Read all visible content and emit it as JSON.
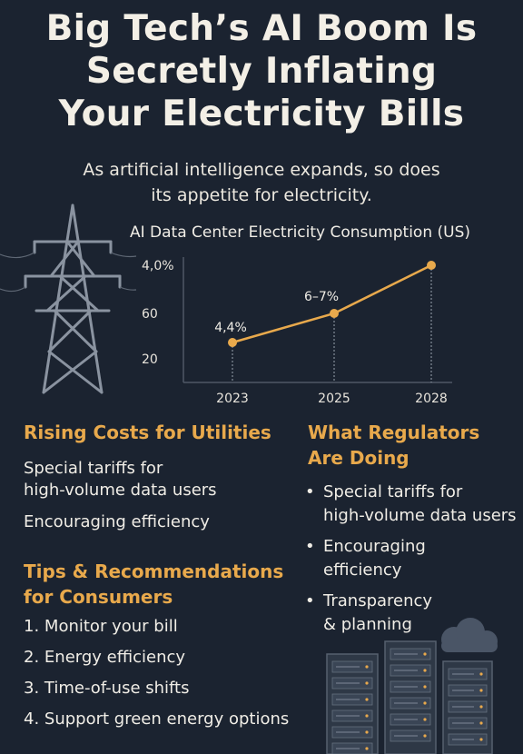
{
  "headline": {
    "line1": "Big Tech’s AI Boom Is",
    "line2": "Secretly Inflating",
    "line3": "Your Electricity Bills"
  },
  "subtitle": {
    "line1": "As artificial intelligence expands, so does",
    "line2": "its appetite for electricity."
  },
  "icons": {
    "tower": "power-transmission-tower-icon",
    "cloud": "cloud-icon",
    "servers": "server-rack-icon"
  },
  "chart_data": {
    "type": "line",
    "title": "AI Data Center Electricity Consumption (US)",
    "y_tick_labels": [
      "4,0%",
      "60",
      "20"
    ],
    "categories": [
      "2023",
      "2025",
      "2028"
    ],
    "point_labels": [
      "4,4%",
      "6–7%",
      ""
    ],
    "relative_levels": [
      0.15,
      0.47,
      1.0
    ],
    "line_color": "#e8a94c",
    "grid": false
  },
  "left": {
    "rising_heading": "Rising Costs for Utilities",
    "rising_items": [
      "Special tariffs for",
      "high-volume data users",
      "Encouraging efficiency"
    ],
    "tips_heading_line1": "Tips & Recommendations",
    "tips_heading_line2": "for Consumers",
    "tips": [
      {
        "num": "1.",
        "text": "Monitor your bill"
      },
      {
        "num": "2.",
        "text": "Energy efficiency"
      },
      {
        "num": "3.",
        "text": "Time-of-use shifts"
      },
      {
        "num": "4.",
        "text": "Support green energy options"
      }
    ]
  },
  "right": {
    "heading_line1": "What Regulators",
    "heading_line2": "Are Doing",
    "bullets": [
      {
        "l1": "Special tariffs for",
        "l2": "high-volume data users"
      },
      {
        "l1": "Encouraging",
        "l2": "efficiency"
      },
      {
        "l1": "Transparency",
        "l2": "& planning"
      }
    ]
  }
}
